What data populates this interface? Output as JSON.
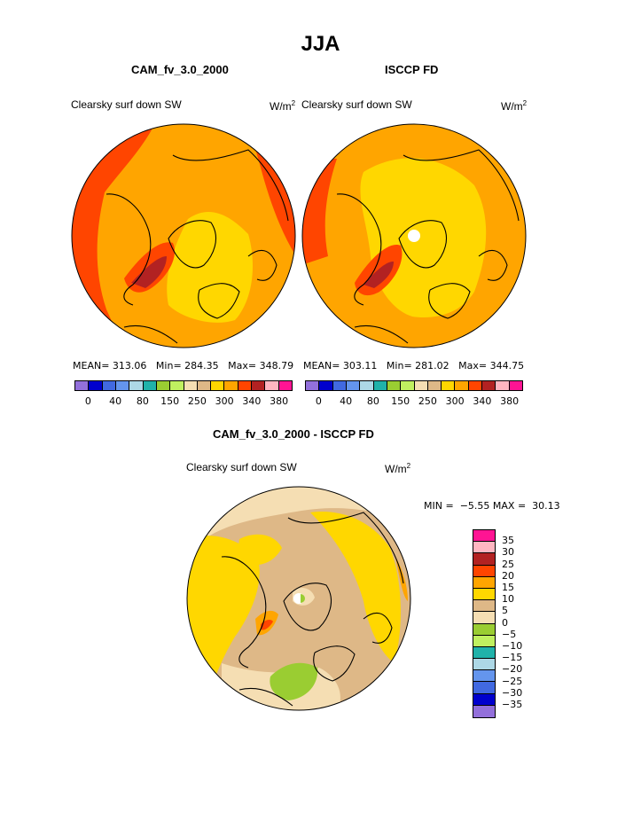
{
  "page_title": "JJA",
  "chart_data": [
    {
      "type": "polar_contour_map",
      "title": "CAM_fv_3.0_2000",
      "variable_label": "Clearsky surf down SW",
      "units_base": "W/m",
      "units_exp": "2",
      "stats": {
        "mean_label": "MEAN=",
        "mean": "313.06",
        "min_label": "Min=",
        "min": "284.35",
        "max_label": "Max=",
        "max": "348.79"
      },
      "colorbar_colors": [
        "#9370DB",
        "#0000CD",
        "#4169E1",
        "#6495ED",
        "#ADD8E6",
        "#20B2AA",
        "#9ACD32",
        "#C0F060",
        "#F5DEB3",
        "#DEB887",
        "#FFD700",
        "#FFA500",
        "#FF4500",
        "#B22222",
        "#FFB6C1",
        "#FF1493"
      ],
      "colorbar_labels": [
        "0",
        "40",
        "80",
        "150",
        "250",
        "300",
        "340",
        "380"
      ]
    },
    {
      "type": "polar_contour_map",
      "title": "ISCCP FD",
      "variable_label": "Clearsky surf down SW",
      "units_base": "W/m",
      "units_exp": "2",
      "stats": {
        "mean_label": "MEAN=",
        "mean": "303.11",
        "min_label": "Min=",
        "min": "281.02",
        "max_label": "Max=",
        "max": "344.75"
      },
      "colorbar_colors": [
        "#9370DB",
        "#0000CD",
        "#4169E1",
        "#6495ED",
        "#ADD8E6",
        "#20B2AA",
        "#9ACD32",
        "#C0F060",
        "#F5DEB3",
        "#DEB887",
        "#FFD700",
        "#FFA500",
        "#FF4500",
        "#B22222",
        "#FFB6C1",
        "#FF1493"
      ],
      "colorbar_labels": [
        "0",
        "40",
        "80",
        "150",
        "250",
        "300",
        "340",
        "380"
      ]
    },
    {
      "type": "polar_contour_map",
      "title": "CAM_fv_3.0_2000 - ISCCP FD",
      "variable_label": "Clearsky surf down SW",
      "units_base": "W/m",
      "units_exp": "2",
      "stats": {
        "min_label": "MIN =",
        "min": "−5.55",
        "max_label": "MAX =",
        "max": "30.13"
      },
      "colorbar_colors": [
        "#FF1493",
        "#FFB6C1",
        "#B22222",
        "#FF4500",
        "#FFA500",
        "#FFD700",
        "#DEB887",
        "#F5DEB3",
        "#9ACD32",
        "#C0F060",
        "#20B2AA",
        "#ADD8E6",
        "#6495ED",
        "#4169E1",
        "#0000CD",
        "#9370DB"
      ],
      "colorbar_labels": [
        "35",
        "30",
        "25",
        "20",
        "15",
        "10",
        "5",
        "0",
        "−5",
        "−10",
        "−15",
        "−20",
        "−25",
        "−30",
        "−35"
      ]
    }
  ]
}
